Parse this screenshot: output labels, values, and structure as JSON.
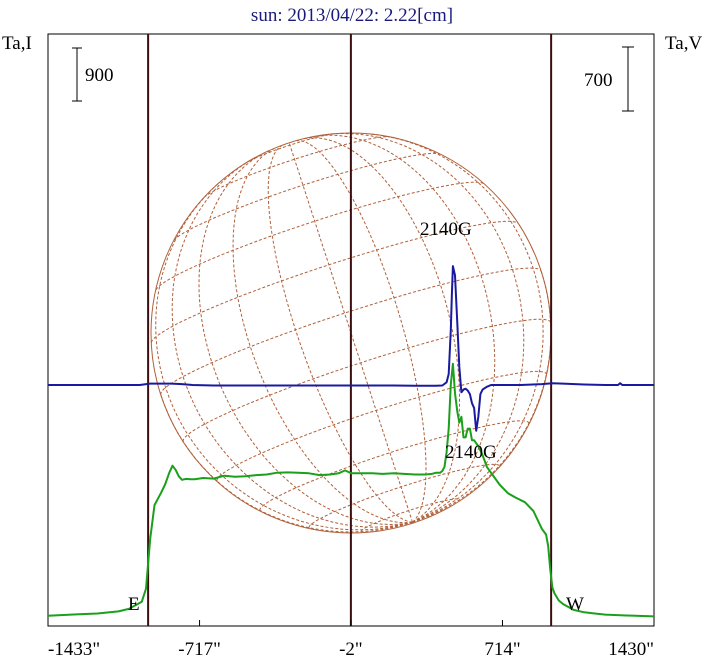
{
  "chart_data": {
    "type": "line",
    "title": "sun: 2013/04/22: 2.22[cm]",
    "x_unit": "arcsec",
    "xlim": [
      -1433,
      1430
    ],
    "x_tick_values": [
      -1433,
      -717,
      -2,
      714,
      1430
    ],
    "x_tick_labels": [
      "-1433\"",
      "-717\"",
      "-2\"",
      "714\"",
      "1430\""
    ],
    "left_axis_label": "Ta,I",
    "right_axis_label": "Ta,V",
    "left_scale_bar_label": "900",
    "right_scale_bar_label": "700",
    "limb_labels": {
      "east": "E",
      "west": "W"
    },
    "vertical_markers_x": [
      -960,
      -2,
      944
    ],
    "annotations": [
      {
        "text": "2140G",
        "x": 480,
        "series": "Ta,I"
      },
      {
        "text": "2140G",
        "x": 595,
        "series": "Ta,V"
      }
    ],
    "grid": false,
    "series": [
      {
        "name": "Ta,I",
        "axis": "left",
        "color": "#1aa01a",
        "x": [
          -1433,
          -1300,
          -1200,
          -1100,
          -1050,
          -1020,
          -990,
          -970,
          -950,
          -930,
          -900,
          -880,
          -860,
          -845,
          -830,
          -815,
          -800,
          -780,
          -760,
          -740,
          -700,
          -650,
          -600,
          -550,
          -500,
          -450,
          -400,
          -350,
          -300,
          -250,
          -200,
          -150,
          -100,
          -60,
          -30,
          0,
          50,
          100,
          150,
          200,
          250,
          300,
          350,
          380,
          400,
          420,
          430,
          440,
          450,
          460,
          470,
          480,
          490,
          500,
          510,
          520,
          530,
          540,
          550,
          560,
          570,
          580,
          600,
          620,
          640,
          660,
          680,
          700,
          740,
          780,
          820,
          860,
          880,
          900,
          920,
          930,
          940,
          950,
          960,
          980,
          1000,
          1050,
          1100,
          1150,
          1200,
          1300,
          1430
        ],
        "values": [
          20,
          45,
          60,
          95,
          140,
          200,
          260,
          480,
          1330,
          1900,
          2100,
          2250,
          2450,
          2570,
          2500,
          2390,
          2330,
          2345,
          2340,
          2340,
          2360,
          2350,
          2400,
          2380,
          2390,
          2410,
          2420,
          2450,
          2455,
          2450,
          2440,
          2410,
          2420,
          2440,
          2490,
          2440,
          2440,
          2440,
          2430,
          2440,
          2430,
          2420,
          2420,
          2430,
          2450,
          2450,
          2480,
          2550,
          2800,
          3200,
          3950,
          4300,
          3800,
          3500,
          3300,
          3400,
          3050,
          3050,
          3200,
          3200,
          3000,
          3000,
          2900,
          2750,
          2550,
          2450,
          2350,
          2250,
          2100,
          2020,
          1950,
          1800,
          1650,
          1500,
          1400,
          1200,
          800,
          500,
          400,
          280,
          220,
          120,
          80,
          60,
          40,
          25,
          10
        ]
      },
      {
        "name": "Ta,V",
        "axis": "right",
        "color": "#1a1aa0",
        "x": [
          -1433,
          -1200,
          -1000,
          -960,
          -950,
          -900,
          -850,
          -800,
          -750,
          -650,
          -500,
          -300,
          -100,
          0,
          100,
          200,
          300,
          400,
          430,
          450,
          460,
          470,
          475,
          480,
          490,
          500,
          510,
          520,
          530,
          540,
          550,
          560,
          570,
          580,
          590,
          600,
          610,
          620,
          640,
          660,
          700,
          800,
          900,
          950,
          1000,
          1100,
          1200,
          1260,
          1270,
          1280,
          1300,
          1430
        ],
        "values": [
          0,
          0,
          0,
          12,
          15,
          15,
          15,
          10,
          0,
          -5,
          -5,
          -5,
          -5,
          -5,
          -5,
          -5,
          -8,
          -8,
          -5,
          30,
          120,
          600,
          1000,
          1300,
          1200,
          700,
          200,
          -80,
          -50,
          -40,
          -60,
          -100,
          -200,
          -250,
          -500,
          -350,
          -100,
          -50,
          -20,
          0,
          0,
          0,
          10,
          20,
          15,
          5,
          0,
          0,
          20,
          0,
          0,
          0
        ]
      }
    ]
  }
}
